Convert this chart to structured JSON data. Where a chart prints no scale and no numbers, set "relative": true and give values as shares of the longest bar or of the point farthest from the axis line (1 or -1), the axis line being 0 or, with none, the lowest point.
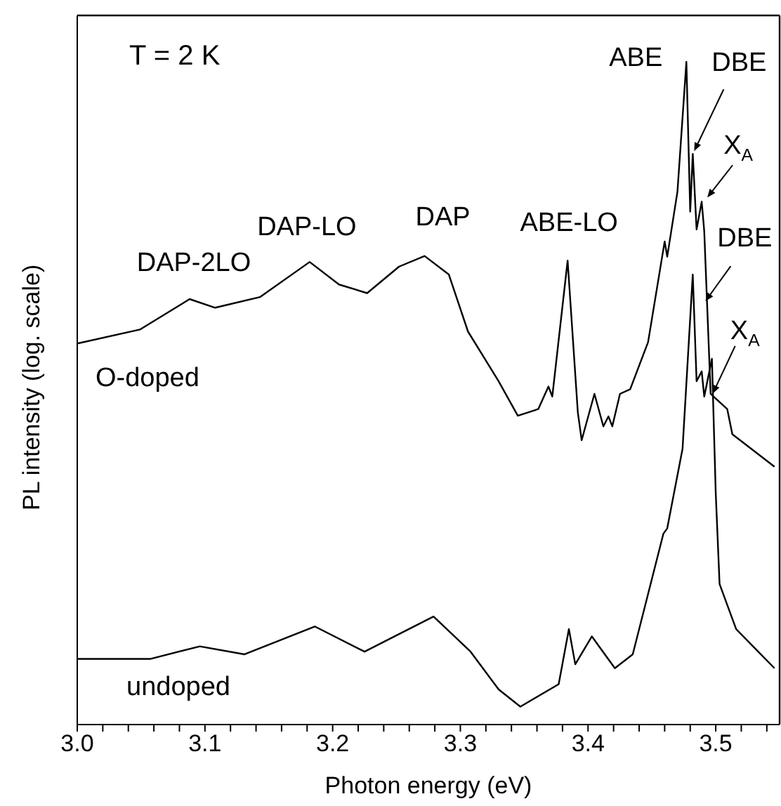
{
  "chart_data": {
    "type": "line",
    "relative": true,
    "xlabel": "Photon energy (eV)",
    "ylabel": "PL intensity (log. scale)",
    "xlim": [
      3.0,
      3.55
    ],
    "xticks": [
      {
        "value": 3.0,
        "label": "3.0"
      },
      {
        "value": 3.02,
        "label": null
      },
      {
        "value": 3.04,
        "label": null
      },
      {
        "value": 3.06,
        "label": null
      },
      {
        "value": 3.08,
        "label": null
      },
      3.1,
      {
        "value": 3.12,
        "label": null
      },
      {
        "value": 3.14,
        "label": null
      },
      {
        "value": 3.16,
        "label": null
      },
      {
        "value": 3.18,
        "label": null
      },
      3.2,
      {
        "value": 3.22,
        "label": null
      },
      {
        "value": 3.24,
        "label": null
      },
      {
        "value": 3.26,
        "label": null
      },
      {
        "value": 3.28,
        "label": null
      },
      3.3,
      {
        "value": 3.32,
        "label": null
      },
      {
        "value": 3.34,
        "label": null
      },
      {
        "value": 3.36,
        "label": null
      },
      {
        "value": 3.38,
        "label": null
      },
      3.4,
      {
        "value": 3.42,
        "label": null
      },
      {
        "value": 3.44,
        "label": null
      },
      {
        "value": 3.46,
        "label": null
      },
      {
        "value": 3.48,
        "label": null
      },
      3.5,
      {
        "value": 3.52,
        "label": null
      },
      {
        "value": 3.54,
        "label": null
      }
    ],
    "marker": "none",
    "line_style": "solid",
    "series": [
      {
        "name": "O-doped",
        "color": "#000000",
        "x": [
          3.0,
          3.049,
          3.088,
          3.108,
          3.143,
          3.182,
          3.205,
          3.227,
          3.252,
          3.272,
          3.291,
          3.306,
          3.33,
          3.345,
          3.361,
          3.369,
          3.372,
          3.384,
          3.392,
          3.395,
          3.405,
          3.412,
          3.416,
          3.419,
          3.425,
          3.433,
          3.447,
          3.46,
          3.462,
          3.47,
          3.477,
          3.48,
          3.482,
          3.485,
          3.489,
          3.491,
          3.496,
          3.509,
          3.513,
          3.546
        ],
        "values": [
          0.575,
          0.596,
          0.642,
          0.629,
          0.645,
          0.698,
          0.664,
          0.651,
          0.691,
          0.707,
          0.679,
          0.593,
          0.518,
          0.466,
          0.476,
          0.51,
          0.495,
          0.7,
          0.471,
          0.429,
          0.499,
          0.45,
          0.465,
          0.45,
          0.499,
          0.506,
          0.577,
          0.729,
          0.706,
          0.804,
          1.0,
          0.774,
          0.861,
          0.747,
          0.789,
          0.744,
          0.499,
          0.476,
          0.438,
          0.389
        ]
      },
      {
        "name": "undoped",
        "color": "#000000",
        "x": [
          3.0,
          3.057,
          3.096,
          3.131,
          3.186,
          3.225,
          3.279,
          3.308,
          3.33,
          3.347,
          3.377,
          3.385,
          3.39,
          3.403,
          3.421,
          3.435,
          3.459,
          3.462,
          3.474,
          3.482,
          3.485,
          3.489,
          3.491,
          3.497,
          3.5,
          3.503,
          3.516,
          3.546
        ],
        "values": [
          0.099,
          0.099,
          0.118,
          0.106,
          0.148,
          0.11,
          0.163,
          0.11,
          0.053,
          0.027,
          0.061,
          0.144,
          0.091,
          0.133,
          0.085,
          0.106,
          0.288,
          0.296,
          0.416,
          0.679,
          0.518,
          0.533,
          0.495,
          0.552,
          0.349,
          0.212,
          0.144,
          0.085
        ]
      }
    ],
    "annotations": [
      "T = 2 K",
      {
        "text": "DAP-2LO",
        "x": 3.088,
        "y": 0.642
      },
      {
        "text": "DAP-LO",
        "x": 3.182,
        "y": 0.698
      },
      {
        "text": "DAP",
        "x": 3.272,
        "y": 0.707
      },
      {
        "text": "ABE-LO",
        "x": 3.384,
        "y": 0.7
      },
      {
        "text": "ABE",
        "x": 3.477,
        "y": 1.0
      },
      {
        "text": "DBE",
        "x": 3.482,
        "y": 0.861
      },
      {
        "text": "X$_{A}$",
        "x": 3.489,
        "y": 0.789
      },
      {
        "text": "DBE",
        "x": 3.482,
        "y": 0.679
      },
      {
        "text": "X$_{A}$",
        "x": 3.491,
        "y": 0.495
      }
    ]
  }
}
